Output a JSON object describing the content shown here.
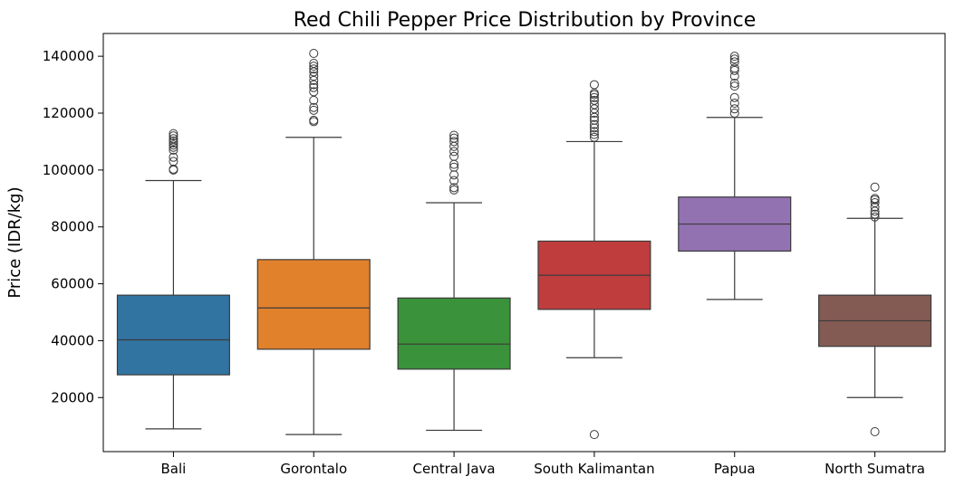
{
  "chart_data": {
    "type": "box",
    "title": "Red Chili Pepper Price Distribution by Province",
    "xlabel": "",
    "ylabel": "Price (IDR/kg)",
    "ylim": [
      1000,
      148000
    ],
    "yticks": [
      20000,
      40000,
      60000,
      80000,
      100000,
      120000,
      140000
    ],
    "ytick_labels": [
      "20000",
      "40000",
      "60000",
      "80000",
      "100000",
      "120000",
      "140000"
    ],
    "grid": false,
    "legend": "none",
    "categories": [
      "Bali",
      "Gorontalo",
      "Central Java",
      "South Kalimantan",
      "Papua",
      "North Sumatra"
    ],
    "colors": [
      "#3274a1",
      "#e1812c",
      "#3a923a",
      "#c03d3e",
      "#9372b2",
      "#845b53"
    ],
    "boxes": [
      {
        "min": 9000,
        "q1": 28000,
        "median": 40300,
        "q3": 56000,
        "max": 96300,
        "outliers": [
          100000,
          100300,
          103000,
          104500,
          107000,
          108000,
          108800,
          109500,
          110200,
          111000,
          112000,
          112800
        ]
      },
      {
        "min": 7000,
        "q1": 37000,
        "median": 51500,
        "q3": 68500,
        "max": 111500,
        "outliers": [
          117000,
          117500,
          121000,
          122000,
          124500,
          127500,
          129000,
          130000,
          131500,
          133000,
          134500,
          135500,
          136500,
          137500,
          141000
        ]
      },
      {
        "min": 8500,
        "q1": 30000,
        "median": 38800,
        "q3": 55000,
        "max": 88500,
        "outliers": [
          93000,
          93800,
          96300,
          98300,
          101000,
          102000,
          104800,
          106500,
          108300,
          110000,
          111200,
          112200
        ]
      },
      {
        "min": 34000,
        "q1": 51000,
        "median": 63000,
        "q3": 75000,
        "max": 110000,
        "outliers": [
          7000,
          111500,
          112500,
          113500,
          114800,
          116000,
          117500,
          118500,
          120000,
          121500,
          123000,
          124500,
          125500,
          126500,
          127000,
          130000
        ]
      },
      {
        "min": 54500,
        "q1": 71500,
        "median": 81000,
        "q3": 90500,
        "max": 118500,
        "outliers": [
          120000,
          121500,
          123500,
          125500,
          129500,
          130500,
          133000,
          135000,
          135800,
          138000,
          139000,
          140000
        ]
      },
      {
        "min": 20000,
        "q1": 38000,
        "median": 47000,
        "q3": 56000,
        "max": 83000,
        "outliers": [
          8000,
          83500,
          84500,
          85500,
          87000,
          88500,
          89500,
          90000,
          94000
        ]
      }
    ]
  }
}
